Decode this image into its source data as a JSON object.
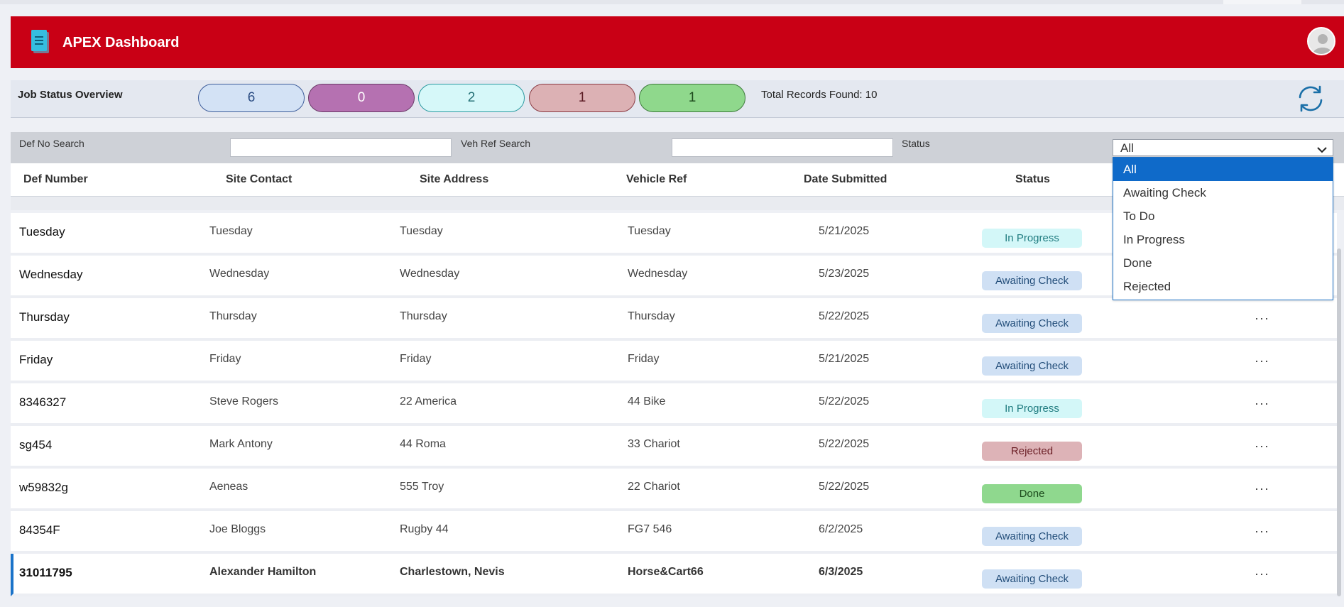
{
  "app": {
    "title": "APEX Dashboard"
  },
  "status_overview": {
    "title": "Job Status Overview",
    "pills": [
      {
        "value": "6",
        "bg": "#d3e2f5",
        "border": "#3c5c9a",
        "color": "#2a4c82"
      },
      {
        "value": "0",
        "bg": "#b571b1",
        "border": "#6a3a68",
        "color": "#ffffff"
      },
      {
        "value": "2",
        "bg": "#d6f8f9",
        "border": "#2a9aa0",
        "color": "#236f75"
      },
      {
        "value": "1",
        "bg": "#dcb1b4",
        "border": "#8a3a42",
        "color": "#5a1a22"
      },
      {
        "value": "1",
        "bg": "#8fd88c",
        "border": "#3d7a3b",
        "color": "#1d4a1d"
      }
    ],
    "total_text": "Total Records Found: 10",
    "refresh_icon": "refresh-icon"
  },
  "filters": {
    "def_label": "Def No Search",
    "def_value": "",
    "veh_label": "Veh Ref Search",
    "veh_value": "",
    "status_label": "Status",
    "status_value": "All"
  },
  "columns": {
    "def": "Def Number",
    "contact": "Site Contact",
    "address": "Site Address",
    "vehicle": "Vehicle Ref",
    "date": "Date Submitted",
    "status": "Status"
  },
  "rows": [
    {
      "def": "Tuesday",
      "contact": "Tuesday",
      "address": "Tuesday",
      "vehicle": "Tuesday",
      "date": "5/21/2025",
      "status": "In Progress",
      "badge": "b-progress",
      "dots": "",
      "selected": false
    },
    {
      "def": "Wednesday",
      "contact": "Wednesday",
      "address": "Wednesday",
      "vehicle": "Wednesday",
      "date": "5/23/2025",
      "status": "Awaiting Check",
      "badge": "b-awaiting",
      "dots": "",
      "selected": false
    },
    {
      "def": "Thursday",
      "contact": "Thursday",
      "address": "Thursday",
      "vehicle": "Thursday",
      "date": "5/22/2025",
      "status": "Awaiting Check",
      "badge": "b-awaiting",
      "dots": "···",
      "selected": false
    },
    {
      "def": "Friday",
      "contact": "Friday",
      "address": "Friday",
      "vehicle": "Friday",
      "date": "5/21/2025",
      "status": "Awaiting Check",
      "badge": "b-awaiting",
      "dots": "···",
      "selected": false
    },
    {
      "def": "8346327",
      "contact": "Steve Rogers",
      "address": "22 America",
      "vehicle": "44 Bike",
      "date": "5/22/2025",
      "status": "In Progress",
      "badge": "b-progress",
      "dots": "···",
      "selected": false
    },
    {
      "def": "sg454",
      "contact": "Mark Antony",
      "address": "44 Roma",
      "vehicle": "33 Chariot",
      "date": "5/22/2025",
      "status": "Rejected",
      "badge": "b-rejected",
      "dots": "···",
      "selected": false
    },
    {
      "def": "w59832g",
      "contact": "Aeneas",
      "address": "555 Troy",
      "vehicle": "22 Chariot",
      "date": "5/22/2025",
      "status": "Done",
      "badge": "b-done",
      "dots": "···",
      "selected": false
    },
    {
      "def": "84354F",
      "contact": "Joe Bloggs",
      "address": "Rugby 44",
      "vehicle": "FG7 546",
      "date": "6/2/2025",
      "status": "Awaiting Check",
      "badge": "b-awaiting",
      "dots": "···",
      "selected": false
    },
    {
      "def": "31011795",
      "contact": "Alexander Hamilton",
      "address": "Charlestown, Nevis",
      "vehicle": "Horse&Cart66",
      "date": "6/3/2025",
      "status": "Awaiting Check",
      "badge": "b-awaiting",
      "dots": "···",
      "selected": true
    }
  ],
  "dropdown": {
    "options": [
      "All",
      "Awaiting Check",
      "To Do",
      "In Progress",
      "Done",
      "Rejected"
    ],
    "active": "All"
  },
  "icons": {
    "logo": "document-icon",
    "avatar": "user-avatar-icon",
    "chevron": "chevron-down-icon"
  }
}
